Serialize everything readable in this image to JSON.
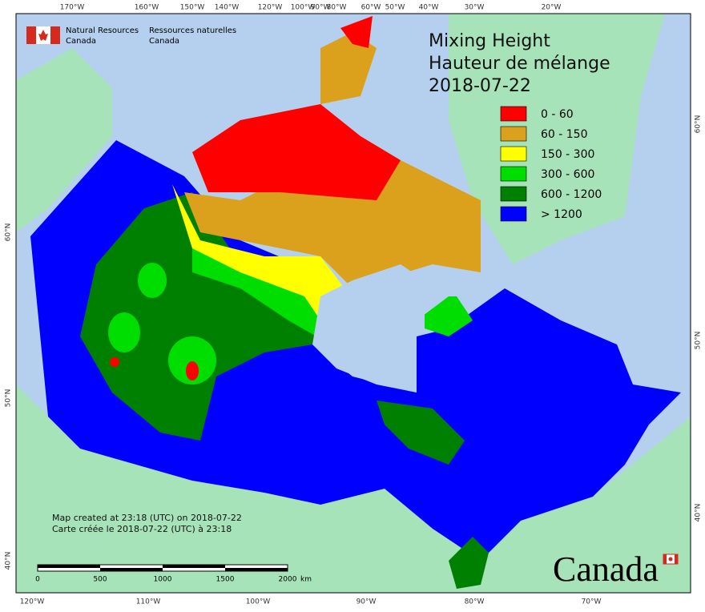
{
  "org": {
    "en_line1": "Natural Resources",
    "en_line2": "Canada",
    "fr_line1": "Ressources naturelles",
    "fr_line2": "Canada"
  },
  "title": {
    "line1": "Mixing Height",
    "line2": "Hauteur de mélange",
    "date": "2018-07-22"
  },
  "legend": [
    {
      "label": "0 - 60",
      "color": "#ff0000"
    },
    {
      "label": "60 - 150",
      "color": "#dba11c"
    },
    {
      "label": "150 - 300",
      "color": "#ffff00"
    },
    {
      "label": "300 - 600",
      "color": "#00dd00"
    },
    {
      "label": "600 - 1200",
      "color": "#008000"
    },
    {
      "label": "> 1200",
      "color": "#0000ff"
    }
  ],
  "top_labels": [
    "170°W",
    "160°W",
    "150°W",
    "140°W",
    "120°W",
    "100°W",
    "90°W",
    "80°W",
    "60°W",
    "50°W",
    "40°W",
    "30°W",
    "20°W"
  ],
  "bottom_labels": [
    "120°W",
    "110°W",
    "100°W",
    "90°W",
    "80°W",
    "70°W"
  ],
  "left_labels": [
    "60°N",
    "50°N",
    "40°N"
  ],
  "right_labels": [
    "60°N",
    "50°N",
    "40°N"
  ],
  "credits": {
    "en": "Map created at 23:18 (UTC) on 2018-07-22",
    "fr": "Carte créée le 2018-07-22 (UTC) à 23:18"
  },
  "scale": {
    "ticks": [
      0,
      500,
      1000,
      1500,
      2000
    ],
    "unit": "km"
  },
  "wordmark": "Canada"
}
